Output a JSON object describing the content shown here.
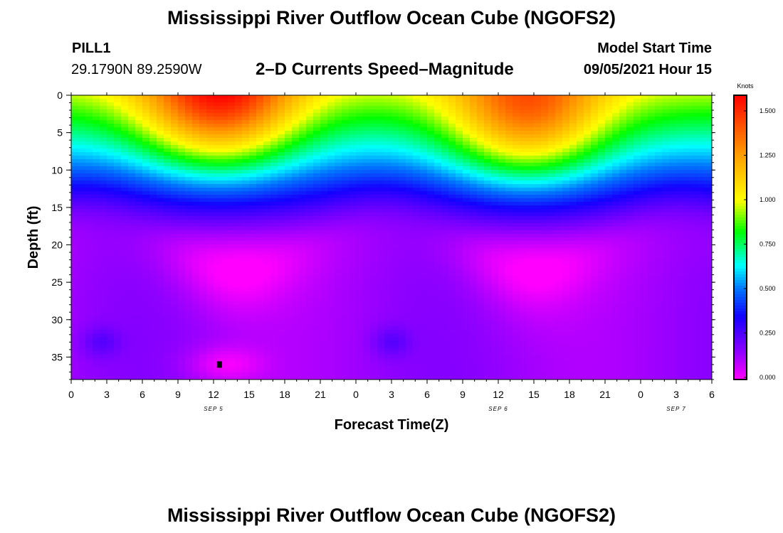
{
  "page": {
    "title_top": "Mississippi River Outflow Ocean Cube (NGOFS2)",
    "title_bottom": "Mississippi River Outflow Ocean Cube (NGOFS2)",
    "station": "PILL1",
    "coords": "29.1790N  89.2590W",
    "subtitle": "2–D Currents Speed–Magnitude",
    "model_start_label": "Model Start Time",
    "model_start_value": "09/05/2021 Hour 15"
  },
  "chart_data": {
    "type": "heatmap",
    "title": "2–D Currents Speed–Magnitude",
    "xlabel": "Forecast Time(Z)",
    "ylabel": "Depth (ft)",
    "xlim": [
      0,
      54
    ],
    "ylim": [
      38,
      0
    ],
    "x_tick_values": [
      0,
      3,
      6,
      9,
      12,
      15,
      18,
      21,
      24,
      27,
      30,
      33,
      36,
      39,
      42,
      45,
      48,
      51,
      54
    ],
    "x_tick_labels": [
      "0",
      "3",
      "6",
      "9",
      "12",
      "15",
      "18",
      "21",
      "0",
      "3",
      "6",
      "9",
      "12",
      "15",
      "18",
      "21",
      "0",
      "3",
      "6"
    ],
    "y_tick_values": [
      0,
      5,
      10,
      15,
      20,
      25,
      30,
      35
    ],
    "y_tick_labels": [
      "0",
      "5",
      "10",
      "15",
      "20",
      "25",
      "30",
      "35"
    ],
    "date_labels": [
      {
        "x": 12,
        "text": "SEP 5"
      },
      {
        "x": 36,
        "text": "SEP 6"
      },
      {
        "x": 51,
        "text": "SEP 7"
      }
    ],
    "colorbar": {
      "label": "Knots",
      "min": 0,
      "max": 1.6,
      "tick_values": [
        0,
        0.25,
        0.5,
        0.75,
        1.0,
        1.25,
        1.5
      ],
      "tick_labels": [
        "0.000",
        "0.250",
        "0.500",
        "0.750",
        "1.000",
        "1.250",
        "1.500"
      ]
    },
    "marker": {
      "x": 12.5,
      "y": 36
    },
    "surface_speed_peaks": [
      {
        "x": 12.5,
        "y": 1,
        "value": 1.6
      },
      {
        "x": 38.5,
        "y": 3,
        "value": 1.5
      }
    ]
  }
}
